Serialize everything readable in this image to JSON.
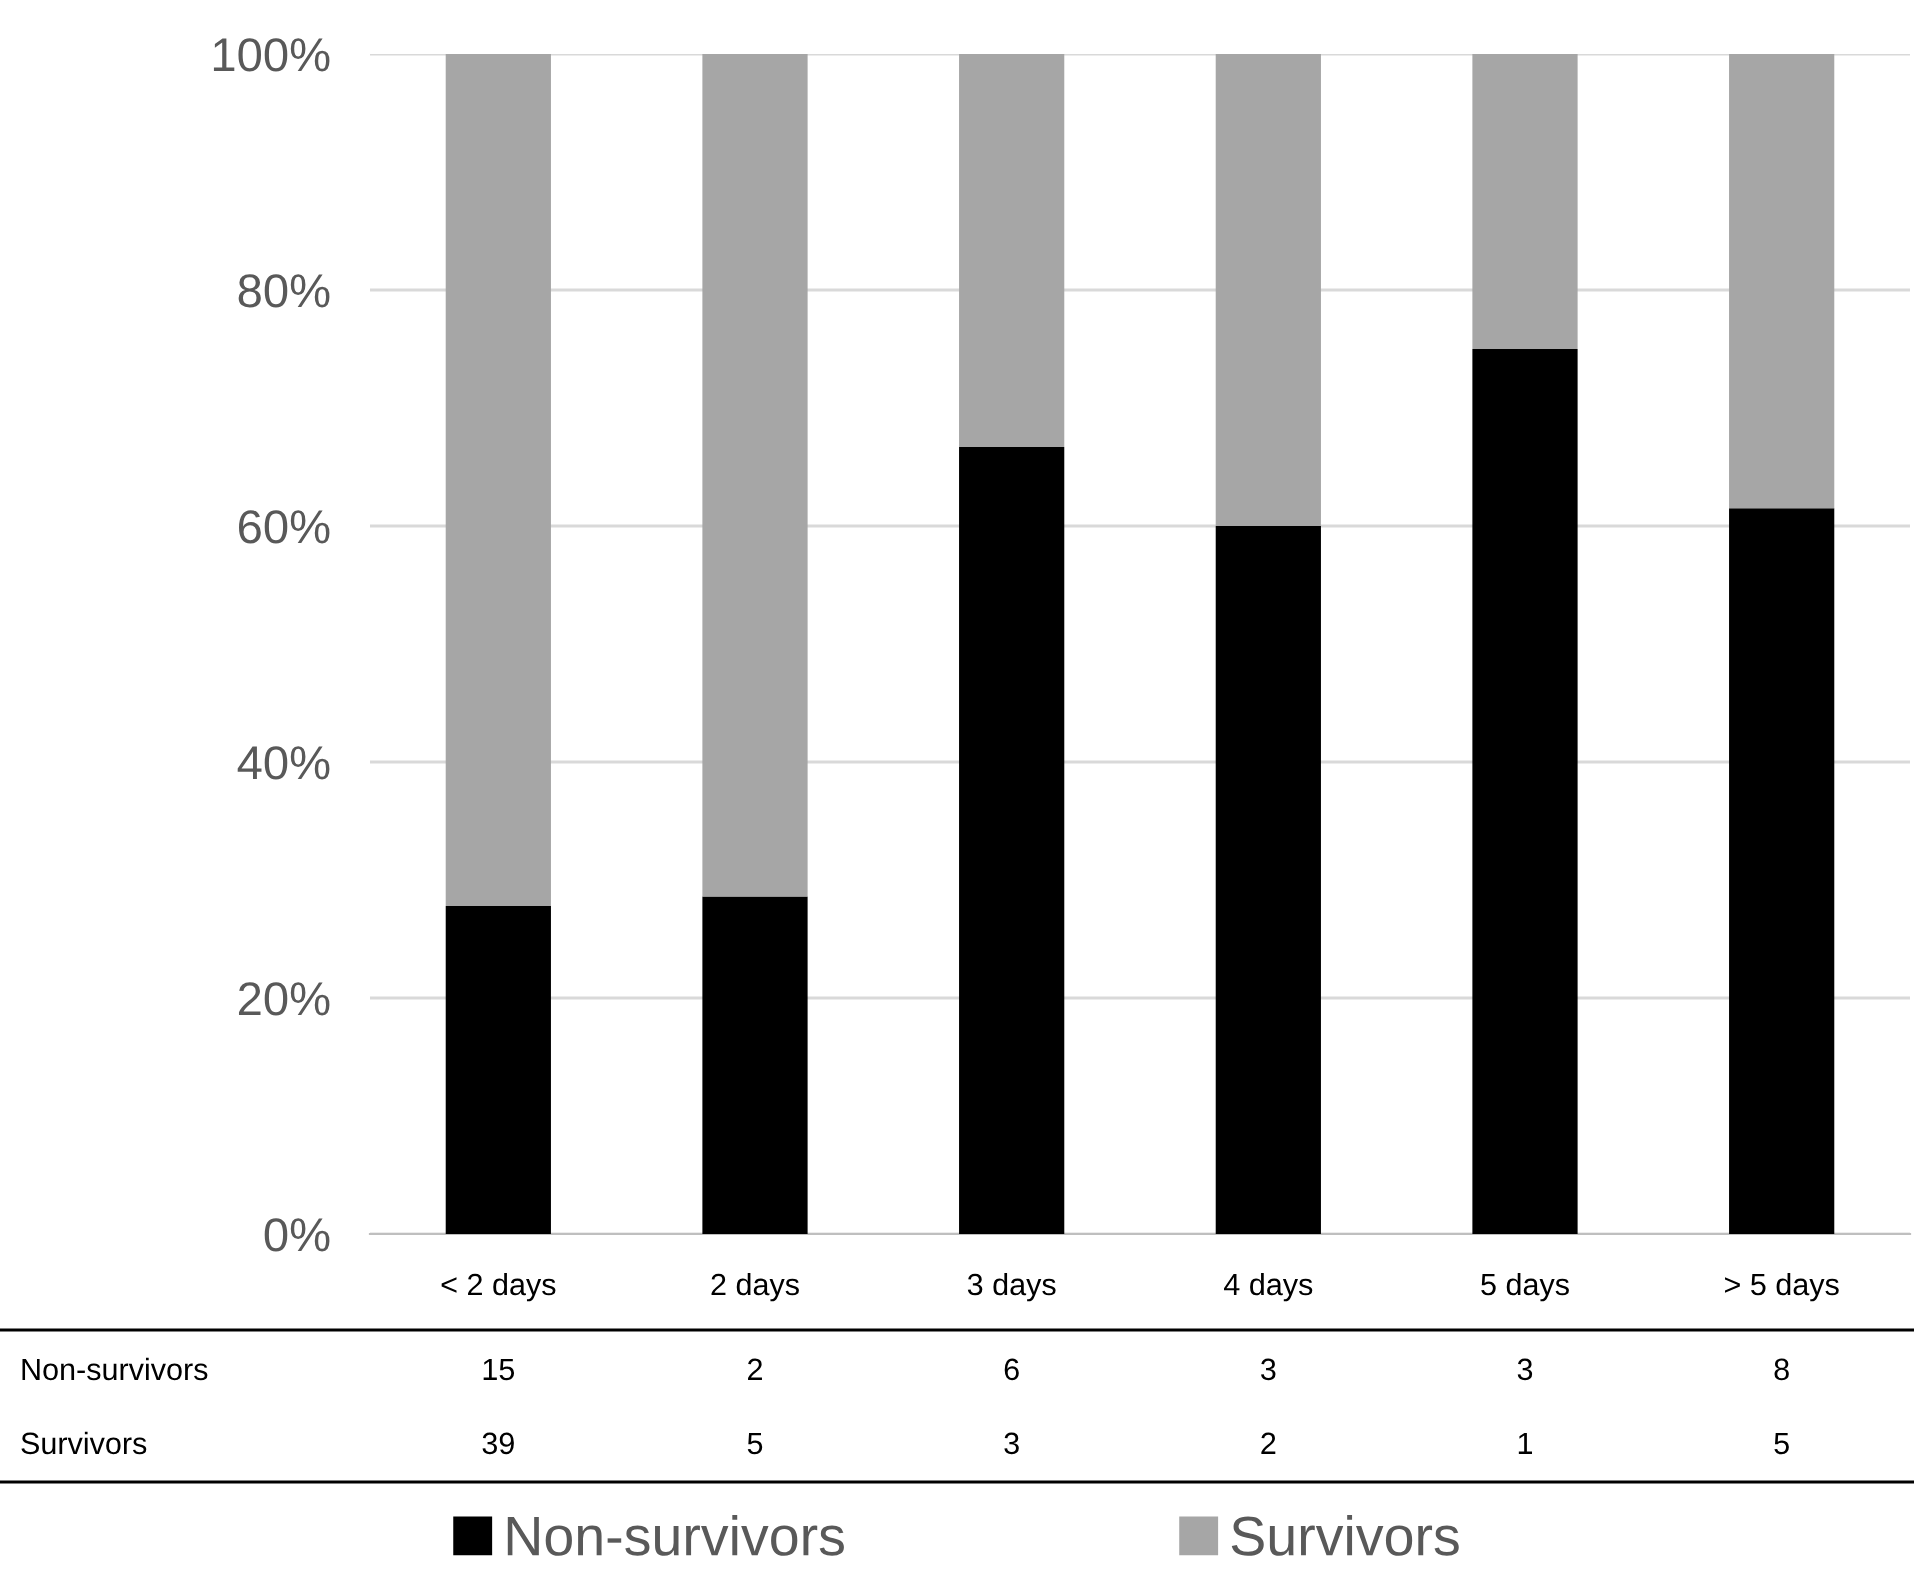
{
  "chart_data": {
    "type": "bar",
    "stacked": true,
    "categories": [
      "< 2 days",
      "2 days",
      "3 days",
      "4 days",
      "5 days",
      "> 5 days"
    ],
    "series": [
      {
        "name": "Non-survivors",
        "color": "#000000",
        "values": [
          27.8,
          28.6,
          66.7,
          60,
          75,
          61.5
        ]
      },
      {
        "name": "Survivors",
        "color": "#a6a6a6",
        "values": [
          72.2,
          71.4,
          33.3,
          40,
          25,
          38.5
        ]
      }
    ],
    "annotations": [
      "15",
      "2",
      "6",
      "3",
      "3",
      "8",
      "39",
      "5",
      "3",
      "2",
      "1",
      "5"
    ],
    "ylim": [
      0,
      100
    ],
    "yticks": [
      {
        "value": 0,
        "label": "0%"
      },
      {
        "value": 20,
        "label": "20%"
      },
      {
        "value": 40,
        "label": "40%"
      },
      {
        "value": 60,
        "label": "60%"
      },
      {
        "value": 80,
        "label": "80%"
      },
      {
        "value": 100,
        "label": "100%"
      }
    ],
    "grid": "y",
    "legend": "bottom"
  }
}
